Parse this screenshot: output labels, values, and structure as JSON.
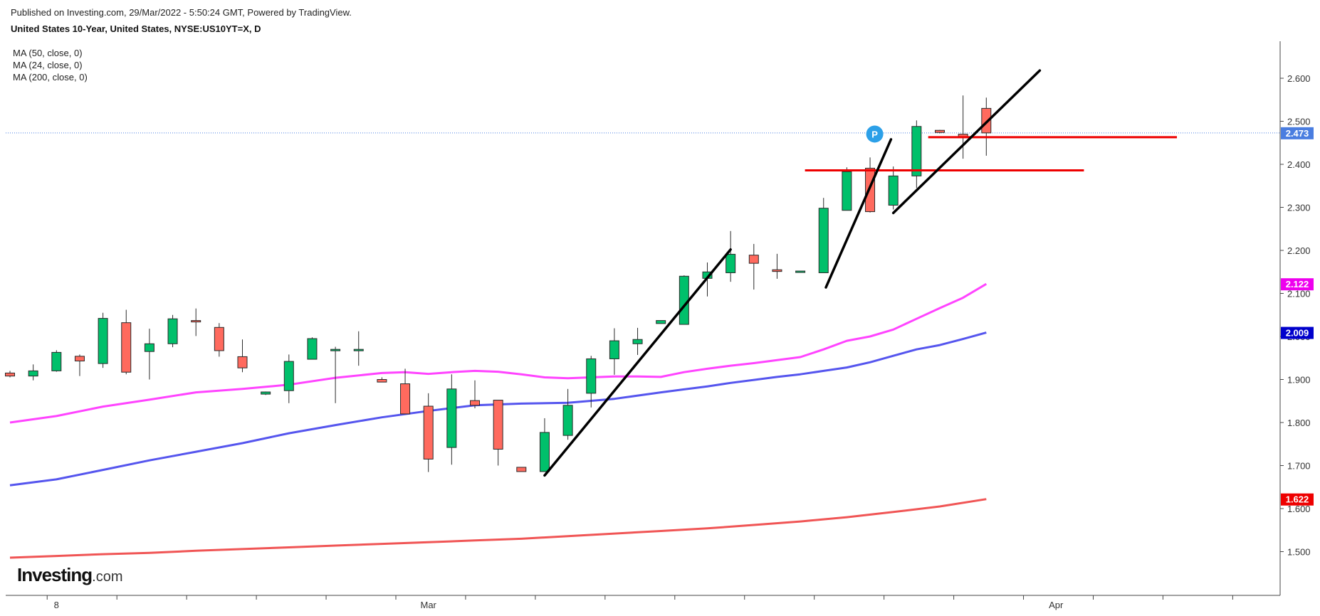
{
  "header": {
    "published": "Published on Investing.com, 29/Mar/2022 - 5:50:24 GMT, Powered by TradingView.",
    "symbol": "United States 10-Year, United States, NYSE:US10YT=X, D"
  },
  "legend": [
    "MA (50, close, 0)",
    "MA (24, close, 0)",
    "MA (200, close, 0)"
  ],
  "logo": {
    "brand": "Investing",
    "suffix": ".com"
  },
  "chart_data": {
    "type": "candlestick",
    "title": "United States 10-Year, United States, NYSE:US10YT=X, D",
    "ylim": [
      1.42,
      2.68
    ],
    "y_ticks": [
      "1.500",
      "1.600",
      "1.700",
      "1.800",
      "1.900",
      "2.000",
      "2.100",
      "2.200",
      "2.300",
      "2.400",
      "2.500",
      "2.600"
    ],
    "x_tick_labels": [
      {
        "label": "8",
        "slot": 2
      },
      {
        "label": "Mar",
        "slot": 18
      },
      {
        "label": "Apr",
        "slot": 45
      }
    ],
    "candles": [
      {
        "slot": 0,
        "open": 1.915,
        "high": 1.92,
        "low": 1.905,
        "close": 1.908
      },
      {
        "slot": 1,
        "open": 1.908,
        "high": 1.935,
        "low": 1.898,
        "close": 1.92
      },
      {
        "slot": 2,
        "open": 1.92,
        "high": 1.968,
        "low": 1.918,
        "close": 1.963
      },
      {
        "slot": 3,
        "open": 1.954,
        "high": 1.958,
        "low": 1.908,
        "close": 1.943
      },
      {
        "slot": 4,
        "open": 1.937,
        "high": 2.055,
        "low": 1.927,
        "close": 2.042
      },
      {
        "slot": 5,
        "open": 2.032,
        "high": 2.062,
        "low": 1.912,
        "close": 1.917
      },
      {
        "slot": 6,
        "open": 1.965,
        "high": 2.018,
        "low": 1.9,
        "close": 1.983
      },
      {
        "slot": 7,
        "open": 1.983,
        "high": 2.05,
        "low": 1.975,
        "close": 2.041
      },
      {
        "slot": 8,
        "open": 2.037,
        "high": 2.065,
        "low": 2.001,
        "close": 2.036
      },
      {
        "slot": 9,
        "open": 2.021,
        "high": 2.031,
        "low": 1.953,
        "close": 1.967
      },
      {
        "slot": 10,
        "open": 1.953,
        "high": 1.993,
        "low": 1.917,
        "close": 1.927
      },
      {
        "slot": 11,
        "open": 1.866,
        "high": 1.872,
        "low": 1.864,
        "close": 1.871
      },
      {
        "slot": 12,
        "open": 1.874,
        "high": 1.958,
        "low": 1.845,
        "close": 1.942
      },
      {
        "slot": 13,
        "open": 1.947,
        "high": 1.998,
        "low": 1.947,
        "close": 1.995
      },
      {
        "slot": 14,
        "open": 1.969,
        "high": 1.976,
        "low": 1.845,
        "close": 1.97
      },
      {
        "slot": 15,
        "open": 1.969,
        "high": 2.012,
        "low": 1.932,
        "close": 1.97
      },
      {
        "slot": 16,
        "open": 1.9,
        "high": 1.905,
        "low": 1.894,
        "close": 1.894
      },
      {
        "slot": 17,
        "open": 1.89,
        "high": 1.925,
        "low": 1.82,
        "close": 1.82
      },
      {
        "slot": 18,
        "open": 1.838,
        "high": 1.868,
        "low": 1.685,
        "close": 1.715
      },
      {
        "slot": 19,
        "open": 1.742,
        "high": 1.912,
        "low": 1.702,
        "close": 1.878
      },
      {
        "slot": 20,
        "open": 1.851,
        "high": 1.898,
        "low": 1.833,
        "close": 1.84
      },
      {
        "slot": 21,
        "open": 1.852,
        "high": 1.852,
        "low": 1.7,
        "close": 1.738
      },
      {
        "slot": 22,
        "open": 1.696,
        "high": 1.696,
        "low": 1.686,
        "close": 1.686
      },
      {
        "slot": 23,
        "open": 1.686,
        "high": 1.81,
        "low": 1.686,
        "close": 1.777
      },
      {
        "slot": 24,
        "open": 1.77,
        "high": 1.878,
        "low": 1.76,
        "close": 1.84
      },
      {
        "slot": 25,
        "open": 1.868,
        "high": 1.955,
        "low": 1.835,
        "close": 1.948
      },
      {
        "slot": 26,
        "open": 1.948,
        "high": 2.019,
        "low": 1.911,
        "close": 1.99
      },
      {
        "slot": 27,
        "open": 1.983,
        "high": 2.02,
        "low": 1.957,
        "close": 1.993
      },
      {
        "slot": 28,
        "open": 2.03,
        "high": 2.037,
        "low": 2.03,
        "close": 2.037
      },
      {
        "slot": 29,
        "open": 2.028,
        "high": 2.142,
        "low": 2.028,
        "close": 2.14
      },
      {
        "slot": 30,
        "open": 2.135,
        "high": 2.172,
        "low": 2.093,
        "close": 2.15
      },
      {
        "slot": 31,
        "open": 2.148,
        "high": 2.245,
        "low": 2.127,
        "close": 2.191
      },
      {
        "slot": 32,
        "open": 2.189,
        "high": 2.215,
        "low": 2.109,
        "close": 2.17
      },
      {
        "slot": 33,
        "open": 2.155,
        "high": 2.192,
        "low": 2.134,
        "close": 2.151
      },
      {
        "slot": 34,
        "open": 2.152,
        "high": 2.152,
        "low": 2.152,
        "close": 2.152
      },
      {
        "slot": 35,
        "open": 2.148,
        "high": 2.322,
        "low": 2.148,
        "close": 2.298
      },
      {
        "slot": 36,
        "open": 2.293,
        "high": 2.393,
        "low": 2.293,
        "close": 2.383
      },
      {
        "slot": 37,
        "open": 2.391,
        "high": 2.416,
        "low": 2.288,
        "close": 2.29
      },
      {
        "slot": 38,
        "open": 2.305,
        "high": 2.395,
        "low": 2.295,
        "close": 2.373
      },
      {
        "slot": 39,
        "open": 2.373,
        "high": 2.502,
        "low": 2.345,
        "close": 2.488
      },
      {
        "slot": 40,
        "open": 2.479,
        "high": 2.48,
        "low": 2.472,
        "close": 2.474
      },
      {
        "slot": 41,
        "open": 2.47,
        "high": 2.56,
        "low": 2.413,
        "close": 2.464
      },
      {
        "slot": 42,
        "open": 2.53,
        "high": 2.555,
        "low": 2.42,
        "close": 2.473
      }
    ],
    "series": [
      {
        "name": "MA (24, close, 0)",
        "color": "#ff44ff",
        "points": [
          [
            0,
            1.8
          ],
          [
            2,
            1.815
          ],
          [
            4,
            1.837
          ],
          [
            6,
            1.853
          ],
          [
            8,
            1.87
          ],
          [
            10,
            1.878
          ],
          [
            12,
            1.888
          ],
          [
            14,
            1.904
          ],
          [
            16,
            1.915
          ],
          [
            17,
            1.917
          ],
          [
            18,
            1.913
          ],
          [
            19,
            1.917
          ],
          [
            20,
            1.92
          ],
          [
            21,
            1.918
          ],
          [
            22,
            1.912
          ],
          [
            23,
            1.905
          ],
          [
            24,
            1.903
          ],
          [
            25,
            1.905
          ],
          [
            26,
            1.907
          ],
          [
            27,
            1.907
          ],
          [
            28,
            1.906
          ],
          [
            29,
            1.917
          ],
          [
            30,
            1.925
          ],
          [
            31,
            1.932
          ],
          [
            32,
            1.938
          ],
          [
            33,
            1.945
          ],
          [
            34,
            1.952
          ],
          [
            35,
            1.97
          ],
          [
            36,
            1.99
          ],
          [
            37,
            2.0
          ],
          [
            38,
            2.016
          ],
          [
            39,
            2.041
          ],
          [
            40,
            2.066
          ],
          [
            41,
            2.09
          ],
          [
            42,
            2.122
          ]
        ]
      },
      {
        "name": "MA (50, close, 0)",
        "color": "#5555ee",
        "points": [
          [
            0,
            1.654
          ],
          [
            2,
            1.668
          ],
          [
            4,
            1.69
          ],
          [
            6,
            1.712
          ],
          [
            8,
            1.732
          ],
          [
            10,
            1.752
          ],
          [
            12,
            1.775
          ],
          [
            14,
            1.794
          ],
          [
            16,
            1.812
          ],
          [
            18,
            1.827
          ],
          [
            20,
            1.84
          ],
          [
            22,
            1.844
          ],
          [
            24,
            1.846
          ],
          [
            26,
            1.855
          ],
          [
            28,
            1.87
          ],
          [
            29,
            1.877
          ],
          [
            30,
            1.884
          ],
          [
            31,
            1.892
          ],
          [
            32,
            1.899
          ],
          [
            33,
            1.906
          ],
          [
            34,
            1.912
          ],
          [
            35,
            1.92
          ],
          [
            36,
            1.928
          ],
          [
            37,
            1.94
          ],
          [
            38,
            1.955
          ],
          [
            39,
            1.97
          ],
          [
            40,
            1.98
          ],
          [
            41,
            1.994
          ],
          [
            42,
            2.009
          ]
        ]
      },
      {
        "name": "MA (200, close, 0)",
        "color": "#f05555",
        "points": [
          [
            0,
            1.486
          ],
          [
            2,
            1.49
          ],
          [
            4,
            1.494
          ],
          [
            6,
            1.497
          ],
          [
            8,
            1.502
          ],
          [
            10,
            1.506
          ],
          [
            12,
            1.51
          ],
          [
            14,
            1.514
          ],
          [
            16,
            1.518
          ],
          [
            18,
            1.522
          ],
          [
            20,
            1.526
          ],
          [
            22,
            1.53
          ],
          [
            24,
            1.536
          ],
          [
            26,
            1.542
          ],
          [
            28,
            1.548
          ],
          [
            30,
            1.554
          ],
          [
            32,
            1.562
          ],
          [
            34,
            1.57
          ],
          [
            36,
            1.58
          ],
          [
            38,
            1.592
          ],
          [
            40,
            1.605
          ],
          [
            42,
            1.622
          ]
        ]
      }
    ],
    "price_labels": [
      {
        "value": 2.473,
        "text": "2.473",
        "color": "#4a7de0"
      },
      {
        "value": 2.122,
        "text": "2.122",
        "color": "#ee00ee"
      },
      {
        "value": 2.009,
        "text": "2.009",
        "color": "#0000cc"
      },
      {
        "value": 1.622,
        "text": "1.622",
        "color": "#ee0000"
      }
    ],
    "last_price": 2.473,
    "pre_market_marker": {
      "text": "P",
      "slot": 37.2,
      "value": 2.472,
      "color": "#2ca0e8"
    },
    "trendlines": [
      {
        "from": [
          23.0,
          1.677
        ],
        "to": [
          31.0,
          2.202
        ],
        "color": "#000000"
      },
      {
        "from": [
          35.1,
          2.114
        ],
        "to": [
          37.9,
          2.458
        ],
        "color": "#000000"
      },
      {
        "from": [
          38.0,
          2.287
        ],
        "to": [
          44.3,
          2.618
        ],
        "color": "#000000"
      }
    ],
    "horizontal_lines": [
      {
        "value": 2.386,
        "from_slot": 34.2,
        "to_slot": 46.2,
        "color": "#ee0000"
      },
      {
        "value": 2.463,
        "from_slot": 39.5,
        "to_slot": 50.2,
        "color": "#ee0000"
      }
    ],
    "colors": {
      "up": "#00c06b",
      "down": "#ff6a5e",
      "frame": "#444444"
    },
    "grid": false
  }
}
